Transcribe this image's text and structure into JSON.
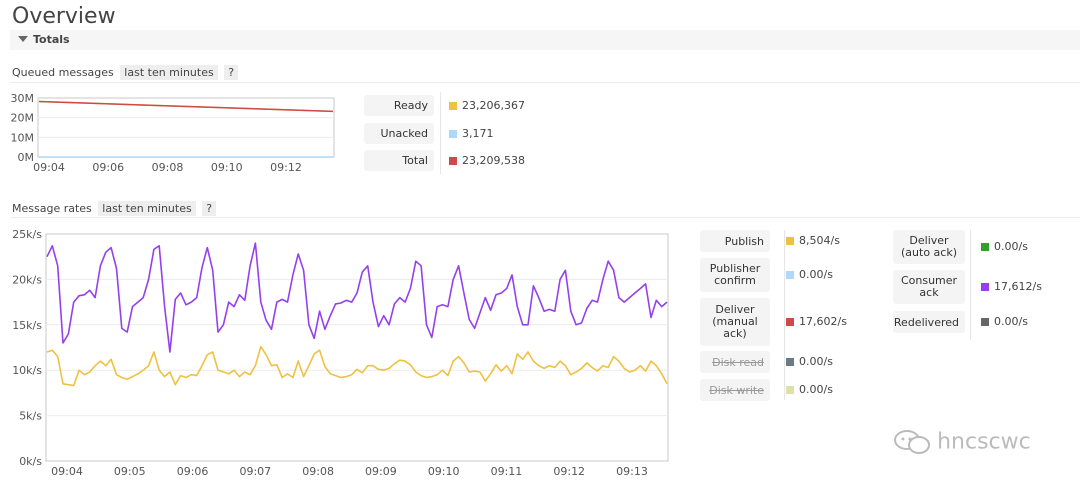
{
  "page": {
    "title": "Overview"
  },
  "section": {
    "label": "Totals"
  },
  "queued": {
    "heading": "Queued messages",
    "range": "last ten minutes",
    "help": "?",
    "chart_data": {
      "type": "line",
      "y_ticks": [
        "30M",
        "20M",
        "10M",
        "0M"
      ],
      "ylim": [
        0,
        30000000
      ],
      "x_ticks": [
        "09:04",
        "09:06",
        "09:08",
        "09:10",
        "09:12"
      ],
      "series": [
        {
          "name": "Ready",
          "color": "#edc240",
          "values": [
            28200000,
            23200000
          ]
        },
        {
          "name": "Unacked",
          "color": "#afd8f8",
          "values": [
            3000,
            3171
          ]
        },
        {
          "name": "Total",
          "color": "#cb4b4b",
          "values": [
            28200000,
            23209538
          ]
        }
      ]
    },
    "legend": [
      {
        "label": "Ready",
        "color": "#edc240",
        "value": "23,206,367"
      },
      {
        "label": "Unacked",
        "color": "#afd8f8",
        "value": "3,171"
      },
      {
        "label": "Total",
        "color": "#cb4b4b",
        "value": "23,209,538"
      }
    ]
  },
  "rates": {
    "heading": "Message rates",
    "range": "last ten minutes",
    "help": "?",
    "chart_data": {
      "type": "line",
      "y_ticks": [
        "25k/s",
        "20k/s",
        "15k/s",
        "10k/s",
        "5k/s",
        "0k/s"
      ],
      "ylim": [
        0,
        25000
      ],
      "x_ticks": [
        "09:04",
        "09:05",
        "09:06",
        "09:07",
        "09:08",
        "09:09",
        "09:10",
        "09:11",
        "09:12",
        "09:13"
      ],
      "series": [
        {
          "name": "Consumer ack",
          "color": "#9440ed",
          "values": [
            22500,
            23700,
            21500,
            13000,
            14000,
            17500,
            18200,
            18300,
            18800,
            18000,
            21500,
            23000,
            23500,
            21200,
            14600,
            14200,
            17000,
            17500,
            18000,
            20000,
            23300,
            23700,
            17000,
            12000,
            17800,
            18500,
            17200,
            17500,
            18000,
            21300,
            23500,
            21000,
            14200,
            15000,
            17500,
            17000,
            18300,
            17700,
            21500,
            24000,
            17500,
            15500,
            14500,
            17500,
            17800,
            17500,
            20500,
            22800,
            21000,
            15000,
            13500,
            16500,
            14500,
            16000,
            17300,
            17400,
            17700,
            17500,
            18500,
            20800,
            21500,
            17500,
            14800,
            16000,
            15000,
            17300,
            18000,
            17500,
            19000,
            22000,
            21500,
            15000,
            13600,
            17000,
            17200,
            17000,
            20000,
            21500,
            18500,
            15600,
            14600,
            16300,
            18000,
            16600,
            18300,
            18500,
            19000,
            20500,
            17000,
            15000,
            15000,
            19300,
            18000,
            16500,
            16700,
            16500,
            20000,
            21000,
            16500,
            15000,
            15200,
            16800,
            17700,
            17500,
            20000,
            22000,
            21000,
            18000,
            17500,
            18000,
            18500,
            19000,
            19500,
            15800,
            17700,
            17000,
            17500
          ]
        },
        {
          "name": "Deliver (manual ack)",
          "color": "#cb4b4b",
          "values": []
        },
        {
          "name": "Publish",
          "color": "#edc240",
          "values": [
            12000,
            12200,
            11500,
            8500,
            8400,
            8300,
            10000,
            9500,
            9800,
            10500,
            11000,
            10500,
            11200,
            9500,
            9200,
            9000,
            9300,
            9600,
            10000,
            10500,
            12000,
            10000,
            9300,
            9800,
            8400,
            9400,
            9200,
            9500,
            9400,
            10500,
            11700,
            12000,
            10000,
            9800,
            9600,
            10000,
            9300,
            9800,
            9500,
            10500,
            12600,
            11700,
            10500,
            10600,
            9200,
            9600,
            9200,
            11000,
            9300,
            10500,
            11800,
            12200,
            10400,
            9600,
            9400,
            9200,
            9300,
            9500,
            10100,
            9700,
            10500,
            10500,
            10100,
            10000,
            10200,
            10700,
            11100,
            11000,
            10600,
            9800,
            9400,
            9200,
            9300,
            9500,
            10000,
            9400,
            11000,
            11500,
            10800,
            9800,
            9900,
            9800,
            8800,
            9600,
            10600,
            9900,
            10500,
            9600,
            11800,
            11200,
            12000,
            11000,
            10500,
            10200,
            10500,
            10300,
            11000,
            10500,
            9500,
            9800,
            10200,
            10800,
            10300,
            9900,
            10500,
            10300,
            11500,
            11000,
            10200,
            9800,
            10000,
            10500,
            9900,
            11000,
            10500,
            9600,
            8500
          ]
        },
        {
          "name": "Publisher confirm",
          "color": "#afd8f8",
          "values": []
        }
      ]
    },
    "legend_left": [
      {
        "label": "Publish",
        "color": "#edc240",
        "value": "8,504/s",
        "strike": false
      },
      {
        "label": "Publisher confirm",
        "color": "#afd8f8",
        "value": "0.00/s",
        "strike": false
      },
      {
        "label": "Deliver (manual ack)",
        "color": "#cb4b4b",
        "value": "17,602/s",
        "strike": false
      },
      {
        "label": "Disk read",
        "color": "#6b7b86",
        "value": "0.00/s",
        "strike": true
      },
      {
        "label": "Disk write",
        "color": "#dfe0a8",
        "value": "0.00/s",
        "strike": true
      }
    ],
    "legend_right": [
      {
        "label": "Deliver (auto ack)",
        "color": "#33a02c",
        "value": "0.00/s"
      },
      {
        "label": "Consumer ack",
        "color": "#9440ed",
        "value": "17,612/s"
      },
      {
        "label": "Redelivered",
        "color": "#666666",
        "value": "0.00/s"
      }
    ]
  },
  "watermark": {
    "text": "hncscwc"
  }
}
